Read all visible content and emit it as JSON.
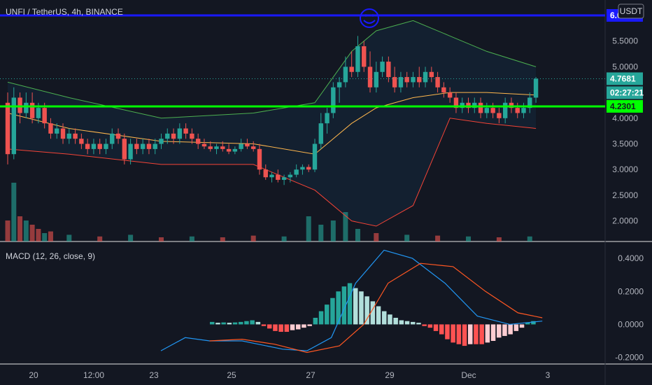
{
  "header": {
    "symbol_title": "UNFI / TetherUS, 4h, BINANCE",
    "currency": "USDT",
    "macd_title": "MACD (12, 26, close, 9)"
  },
  "price_tags": {
    "blue_line": "6.0000",
    "last_price": "4.7681",
    "countdown": "02:27:21",
    "green_line": "4.2301"
  },
  "colors": {
    "background": "#131722",
    "up": "#26a69a",
    "down": "#ef5350",
    "blue_line": "#1919ff",
    "green_line": "#00ff00",
    "bb_upper": "#4caf50",
    "bb_lower": "#f44336",
    "bb_basis": "#ffb74d",
    "macd_line": "#2196f3",
    "signal_line": "#ff5722"
  },
  "chart_data": [
    {
      "type": "candlestick",
      "title": "UNFI / TetherUS, 4h, BINANCE",
      "y_range": [
        1.6,
        6.3
      ],
      "y_ticks": [
        "2.0000",
        "2.5000",
        "3.0000",
        "3.5000",
        "4.0000",
        "5.0000",
        "5.5000"
      ],
      "x_ticks": [
        "20",
        "12:00",
        "23",
        "25",
        "27",
        "29",
        "Dec",
        "3"
      ],
      "horizontal_lines": [
        6.0,
        4.2301
      ],
      "last_price": 4.7681,
      "candles": [
        [
          4.3,
          4.5,
          3.1,
          3.3
        ],
        [
          3.3,
          4.6,
          3.2,
          4.4
        ],
        [
          4.4,
          4.5,
          3.9,
          4.1
        ],
        [
          4.1,
          4.5,
          4.0,
          4.3
        ],
        [
          4.3,
          4.5,
          3.9,
          4.0
        ],
        [
          4.0,
          4.3,
          3.9,
          4.2
        ],
        [
          4.2,
          4.3,
          3.8,
          3.9
        ],
        [
          3.9,
          4.0,
          3.6,
          3.7
        ],
        [
          3.7,
          3.9,
          3.6,
          3.8
        ],
        [
          3.8,
          3.9,
          3.5,
          3.6
        ],
        [
          3.6,
          3.8,
          3.5,
          3.7
        ],
        [
          3.7,
          3.8,
          3.5,
          3.6
        ],
        [
          3.6,
          3.7,
          3.4,
          3.5
        ],
        [
          3.5,
          3.6,
          3.3,
          3.4
        ],
        [
          3.4,
          3.6,
          3.3,
          3.5
        ],
        [
          3.5,
          3.6,
          3.3,
          3.4
        ],
        [
          3.4,
          3.6,
          3.3,
          3.5
        ],
        [
          3.5,
          3.8,
          3.4,
          3.7
        ],
        [
          3.7,
          3.8,
          3.5,
          3.6
        ],
        [
          3.6,
          3.7,
          3.1,
          3.2
        ],
        [
          3.2,
          3.6,
          3.1,
          3.5
        ],
        [
          3.5,
          3.6,
          3.3,
          3.4
        ],
        [
          3.4,
          3.6,
          3.3,
          3.5
        ],
        [
          3.5,
          3.6,
          3.3,
          3.4
        ],
        [
          3.4,
          3.6,
          3.3,
          3.5
        ],
        [
          3.5,
          3.7,
          3.4,
          3.6
        ],
        [
          3.6,
          3.8,
          3.5,
          3.7
        ],
        [
          3.7,
          3.8,
          3.5,
          3.6
        ],
        [
          3.6,
          3.9,
          3.5,
          3.8
        ],
        [
          3.8,
          3.9,
          3.6,
          3.7
        ],
        [
          3.7,
          3.8,
          3.5,
          3.6
        ],
        [
          3.6,
          3.7,
          3.4,
          3.5
        ],
        [
          3.5,
          3.6,
          3.4,
          3.45
        ],
        [
          3.45,
          3.55,
          3.35,
          3.4
        ],
        [
          3.4,
          3.5,
          3.3,
          3.45
        ],
        [
          3.45,
          3.55,
          3.35,
          3.4
        ],
        [
          3.4,
          3.5,
          3.3,
          3.35
        ],
        [
          3.35,
          3.45,
          3.3,
          3.4
        ],
        [
          3.4,
          3.6,
          3.35,
          3.5
        ],
        [
          3.5,
          3.6,
          3.4,
          3.45
        ],
        [
          3.45,
          3.55,
          3.35,
          3.4
        ],
        [
          3.4,
          3.5,
          2.9,
          3.0
        ],
        [
          3.0,
          3.1,
          2.8,
          2.85
        ],
        [
          2.85,
          2.95,
          2.75,
          2.9
        ],
        [
          2.9,
          3.0,
          2.75,
          2.8
        ],
        [
          2.8,
          2.9,
          2.7,
          2.85
        ],
        [
          2.85,
          2.95,
          2.75,
          2.9
        ],
        [
          2.9,
          3.1,
          2.85,
          3.0
        ],
        [
          3.0,
          3.1,
          2.9,
          3.05
        ],
        [
          3.05,
          3.1,
          2.95,
          3.0
        ],
        [
          3.0,
          3.6,
          2.95,
          3.5
        ],
        [
          3.5,
          4.1,
          3.4,
          3.9
        ],
        [
          3.9,
          4.2,
          3.7,
          4.1
        ],
        [
          4.1,
          4.7,
          4.0,
          4.6
        ],
        [
          4.6,
          4.8,
          4.3,
          4.7
        ],
        [
          4.7,
          5.2,
          4.6,
          5.0
        ],
        [
          5.0,
          5.3,
          4.8,
          4.9
        ],
        [
          4.9,
          5.6,
          4.8,
          5.4
        ],
        [
          5.4,
          5.5,
          4.9,
          5.0
        ],
        [
          5.0,
          5.3,
          4.5,
          4.6
        ],
        [
          4.6,
          5.1,
          4.5,
          4.9
        ],
        [
          4.9,
          5.2,
          4.8,
          5.1
        ],
        [
          5.1,
          5.2,
          4.7,
          4.8
        ],
        [
          4.8,
          5.0,
          4.5,
          4.6
        ],
        [
          4.6,
          4.9,
          4.5,
          4.8
        ],
        [
          4.8,
          4.9,
          4.6,
          4.7
        ],
        [
          4.7,
          4.9,
          4.6,
          4.8
        ],
        [
          4.8,
          5.0,
          4.6,
          4.7
        ],
        [
          4.7,
          5.0,
          4.6,
          4.9
        ],
        [
          4.9,
          5.0,
          4.7,
          4.8
        ],
        [
          4.8,
          4.9,
          4.5,
          4.6
        ],
        [
          4.6,
          4.7,
          4.4,
          4.5
        ],
        [
          4.5,
          4.6,
          4.3,
          4.4
        ],
        [
          4.4,
          4.5,
          4.1,
          4.2
        ],
        [
          4.2,
          4.4,
          4.1,
          4.3
        ],
        [
          4.3,
          4.4,
          4.1,
          4.2
        ],
        [
          4.2,
          4.4,
          4.1,
          4.3
        ],
        [
          4.3,
          4.4,
          4.0,
          4.1
        ],
        [
          4.1,
          4.3,
          4.0,
          4.2
        ],
        [
          4.2,
          4.3,
          4.0,
          4.1
        ],
        [
          4.1,
          4.2,
          3.9,
          4.0
        ],
        [
          4.0,
          4.4,
          3.9,
          4.3
        ],
        [
          4.3,
          4.4,
          4.1,
          4.2
        ],
        [
          4.2,
          4.3,
          4.0,
          4.1
        ],
        [
          4.1,
          4.3,
          4.0,
          4.2
        ],
        [
          4.2,
          4.5,
          4.1,
          4.4
        ],
        [
          4.4,
          4.8,
          4.3,
          4.7681
        ]
      ],
      "bollinger": {
        "upper": [
          [
            0,
            4.7
          ],
          [
            10,
            4.4
          ],
          [
            25,
            4.0
          ],
          [
            40,
            4.1
          ],
          [
            50,
            4.3
          ],
          [
            56,
            5.3
          ],
          [
            60,
            5.7
          ],
          [
            66,
            5.9
          ],
          [
            72,
            5.6
          ],
          [
            78,
            5.3
          ],
          [
            86,
            5.0
          ]
        ],
        "basis": [
          [
            0,
            4.1
          ],
          [
            10,
            3.8
          ],
          [
            25,
            3.55
          ],
          [
            40,
            3.5
          ],
          [
            50,
            3.3
          ],
          [
            56,
            3.9
          ],
          [
            60,
            4.2
          ],
          [
            66,
            4.4
          ],
          [
            72,
            4.5
          ],
          [
            78,
            4.5
          ],
          [
            86,
            4.45
          ]
        ],
        "lower": [
          [
            0,
            3.4
          ],
          [
            10,
            3.3
          ],
          [
            25,
            3.1
          ],
          [
            40,
            3.1
          ],
          [
            50,
            2.6
          ],
          [
            56,
            2.0
          ],
          [
            60,
            1.9
          ],
          [
            66,
            2.3
          ],
          [
            72,
            4.0
          ],
          [
            78,
            3.9
          ],
          [
            86,
            3.8
          ]
        ]
      },
      "volume": [
        [
          0,
          0.25,
          0
        ],
        [
          1,
          0.7,
          1
        ],
        [
          2,
          0.3,
          0
        ],
        [
          3,
          0.25,
          1
        ],
        [
          4,
          0.2,
          0
        ],
        [
          5,
          0.15,
          0
        ],
        [
          6,
          0.1,
          1
        ],
        [
          7,
          0.12,
          0
        ],
        [
          10,
          0.08,
          1
        ],
        [
          15,
          0.06,
          0
        ],
        [
          20,
          0.08,
          1
        ],
        [
          25,
          0.05,
          0
        ],
        [
          30,
          0.06,
          1
        ],
        [
          35,
          0.05,
          0
        ],
        [
          40,
          0.07,
          0
        ],
        [
          45,
          0.06,
          1
        ],
        [
          49,
          0.3,
          1
        ],
        [
          51,
          0.2,
          1
        ],
        [
          53,
          0.25,
          1
        ],
        [
          55,
          0.35,
          1
        ],
        [
          57,
          0.15,
          1
        ],
        [
          60,
          0.1,
          0
        ],
        [
          65,
          0.08,
          1
        ],
        [
          70,
          0.07,
          0
        ],
        [
          75,
          0.06,
          1
        ],
        [
          80,
          0.05,
          0
        ],
        [
          85,
          0.06,
          1
        ]
      ]
    },
    {
      "type": "macd",
      "title": "MACD (12, 26, close, 9)",
      "y_range": [
        -0.24,
        0.46
      ],
      "y_ticks": [
        "0.4000",
        "0.2000",
        "0.0000",
        "-0.2000"
      ],
      "histogram": [
        0.015,
        0.01,
        0.012,
        0.01,
        0.012,
        0.015,
        0.02,
        0.025,
        0.015,
        -0.01,
        -0.025,
        -0.04,
        -0.045,
        -0.045,
        -0.035,
        -0.03,
        -0.02,
        -0.01,
        0.04,
        0.08,
        0.12,
        0.16,
        0.2,
        0.23,
        0.25,
        0.22,
        0.2,
        0.17,
        0.14,
        0.11,
        0.08,
        0.06,
        0.04,
        0.025,
        0.02,
        0.015,
        0.01,
        -0.01,
        -0.02,
        -0.04,
        -0.06,
        -0.09,
        -0.11,
        -0.12,
        -0.13,
        -0.12,
        -0.12,
        -0.12,
        -0.11,
        -0.1,
        -0.08,
        -0.07,
        -0.06,
        -0.04,
        -0.02,
        0.01,
        0.02
      ],
      "macd": [
        [
          0,
          -0.16
        ],
        [
          6,
          -0.08
        ],
        [
          12,
          -0.1
        ],
        [
          20,
          -0.1
        ],
        [
          30,
          -0.15
        ],
        [
          36,
          -0.16
        ],
        [
          42,
          -0.08
        ],
        [
          48,
          0.25
        ],
        [
          55,
          0.45
        ],
        [
          62,
          0.4
        ],
        [
          70,
          0.25
        ],
        [
          78,
          0.05
        ],
        [
          86,
          0.0
        ],
        [
          94,
          0.02
        ]
      ],
      "signal": [
        [
          12,
          -0.1
        ],
        [
          20,
          -0.09
        ],
        [
          28,
          -0.12
        ],
        [
          36,
          -0.17
        ],
        [
          44,
          -0.13
        ],
        [
          50,
          0.0
        ],
        [
          56,
          0.25
        ],
        [
          64,
          0.37
        ],
        [
          72,
          0.35
        ],
        [
          80,
          0.2
        ],
        [
          88,
          0.07
        ],
        [
          94,
          0.04
        ]
      ]
    }
  ]
}
